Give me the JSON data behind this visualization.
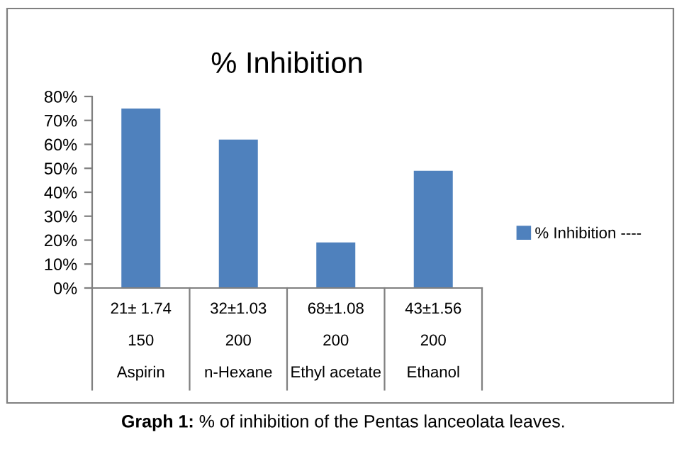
{
  "chart_data": {
    "type": "bar",
    "title": "% Inhibition",
    "categories": [
      "21± 1.74\n150\nAspirin",
      "32±1.03\n200\nn-Hexane",
      "68±1.08\n200\nEthyl acetate",
      "43±1.56\n200\nEthanol"
    ],
    "series": [
      {
        "name": "% Inhibition ----",
        "color": "#4f81bd",
        "values": [
          75,
          62,
          19,
          49
        ]
      }
    ],
    "ylim": [
      0,
      80
    ],
    "yticks": [
      {
        "value": 0,
        "label": "0%"
      },
      {
        "value": 10,
        "label": "10%"
      },
      {
        "value": 20,
        "label": "20%"
      },
      {
        "value": 30,
        "label": "30%"
      },
      {
        "value": 40,
        "label": "40%"
      },
      {
        "value": 50,
        "label": "50%"
      },
      {
        "value": 60,
        "label": "60%"
      },
      {
        "value": 70,
        "label": "70%"
      },
      {
        "value": 80,
        "label": "80%"
      }
    ],
    "grid": false,
    "legend": "right",
    "annotations": [
      "Graph 1: % of inhibition of the Pentas lanceolata leaves."
    ]
  }
}
